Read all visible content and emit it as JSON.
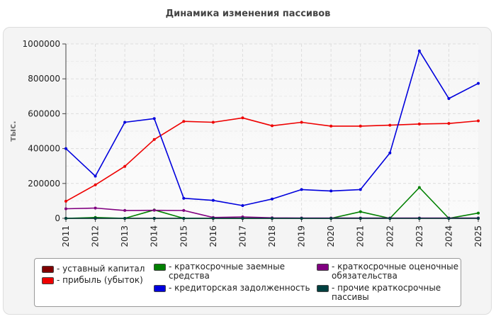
{
  "chart_data": {
    "type": "line",
    "title": "Динамика изменения пассивов",
    "xlabel": "",
    "ylabel": "тыс.",
    "ylim": [
      0,
      1000000
    ],
    "yticks": [
      "0",
      "200000",
      "400000",
      "600000",
      "800000",
      "1000000"
    ],
    "categories": [
      "2011",
      "2012",
      "2013",
      "2014",
      "2015",
      "2016",
      "2017",
      "2018",
      "2019",
      "2020",
      "2021",
      "2022",
      "2023",
      "2024",
      "2025"
    ],
    "grid": true,
    "legend_position": "bottom",
    "series": [
      {
        "name": "- уставный капитал",
        "color": "#800000",
        "values": [
          0,
          0,
          0,
          0,
          0,
          0,
          0,
          0,
          0,
          0,
          0,
          0,
          0,
          0,
          0
        ]
      },
      {
        "name": "- прибыль (убыток)",
        "color": "#ee0000",
        "values": [
          98000,
          192000,
          298000,
          452000,
          556000,
          551000,
          576000,
          531000,
          551000,
          529000,
          529000,
          534000,
          541000,
          544000,
          559000
        ]
      },
      {
        "name": "- краткосрочные заемные средства",
        "color": "#008000",
        "values": [
          0,
          5000,
          0,
          48000,
          0,
          0,
          0,
          0,
          0,
          0,
          38000,
          0,
          177000,
          0,
          30000
        ]
      },
      {
        "name": "- кредиторская задолженность",
        "color": "#0000dd",
        "values": [
          400000,
          242000,
          551000,
          572000,
          115000,
          103000,
          73000,
          111000,
          165000,
          157000,
          165000,
          375000,
          960000,
          687000,
          774000
        ]
      },
      {
        "name": "- краткосрочные оценочные обязательства",
        "color": "#800080",
        "values": [
          55000,
          59000,
          45000,
          46000,
          45000,
          5000,
          8000,
          3000,
          2000,
          2000,
          2000,
          2000,
          2000,
          2000,
          2000
        ]
      },
      {
        "name": "- прочие краткосрочные пассивы",
        "color": "#004040",
        "values": [
          0,
          0,
          0,
          0,
          0,
          0,
          0,
          0,
          0,
          0,
          0,
          0,
          0,
          0,
          0
        ]
      }
    ]
  }
}
